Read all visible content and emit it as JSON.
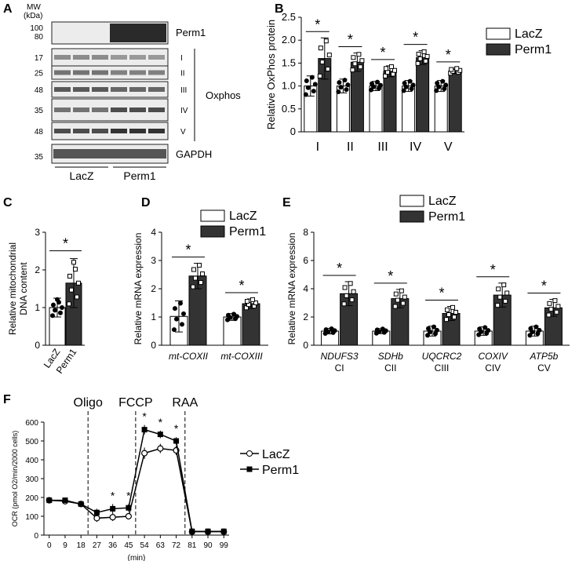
{
  "figure": {
    "panel_labels": [
      "A",
      "B",
      "C",
      "D",
      "E",
      "F"
    ]
  },
  "western_blot": {
    "mw_label": "MW",
    "mw_unit": "(kDa)",
    "perm1_band": {
      "name": "Perm1",
      "mw": [
        "100",
        "80"
      ]
    },
    "oxphos_label": "Oxphos",
    "oxphos_bands": [
      {
        "complex": "I",
        "mw": "17"
      },
      {
        "complex": "II",
        "mw": "25"
      },
      {
        "complex": "III",
        "mw": "48"
      },
      {
        "complex": "IV",
        "mw": "35"
      },
      {
        "complex": "V",
        "mw": "48"
      }
    ],
    "gapdh_band": {
      "name": "GAPDH",
      "mw": "35"
    },
    "groups": [
      "LacZ",
      "Perm1"
    ]
  },
  "chart_data": [
    {
      "panel": "B",
      "type": "bar",
      "ylabel": "Relative OxPhos protein",
      "ylim": [
        0,
        2.5
      ],
      "yticks": [
        "0",
        "0.5",
        "1.0",
        "1.5",
        "2.0",
        "2.5"
      ],
      "categories": [
        "I",
        "II",
        "III",
        "IV",
        "V"
      ],
      "series": [
        {
          "name": "LacZ",
          "values": [
            1.0,
            1.0,
            1.0,
            1.0,
            1.0
          ],
          "err": [
            0.22,
            0.15,
            0.1,
            0.12,
            0.12
          ]
        },
        {
          "name": "Perm1",
          "values": [
            1.6,
            1.52,
            1.32,
            1.62,
            1.33
          ],
          "err": [
            0.45,
            0.2,
            0.12,
            0.15,
            0.06
          ]
        }
      ],
      "significance": [
        "*",
        "*",
        "*",
        "*",
        "*"
      ],
      "legend": "right"
    },
    {
      "panel": "C",
      "type": "bar",
      "ylabel": "Relative mitochondrial DNA content",
      "ylim": [
        0,
        3
      ],
      "yticks": [
        "0",
        "1",
        "2",
        "3"
      ],
      "categories": [
        "LacZ",
        "Perm1"
      ],
      "values": [
        1.0,
        1.65
      ],
      "err": [
        0.25,
        0.65
      ],
      "significance": [
        "*"
      ]
    },
    {
      "panel": "D",
      "type": "bar",
      "ylabel": "Relative mRNA expression",
      "ylim": [
        0,
        4
      ],
      "yticks": [
        "0",
        "1",
        "2",
        "3",
        "4"
      ],
      "categories": [
        "mt-COXII",
        "mt-COXIII"
      ],
      "series": [
        {
          "name": "LacZ",
          "values": [
            1.02,
            1.0
          ],
          "err": [
            0.55,
            0.12
          ]
        },
        {
          "name": "Perm1",
          "values": [
            2.45,
            1.47
          ],
          "err": [
            0.45,
            0.17
          ]
        }
      ],
      "significance": [
        "*",
        "*"
      ],
      "legend": "top"
    },
    {
      "panel": "E",
      "type": "bar",
      "ylabel": "Relative mRNA expression",
      "ylim": [
        0,
        8
      ],
      "yticks": [
        "0",
        "2",
        "4",
        "6",
        "8"
      ],
      "categories": [
        "NDUFS3",
        "SDHb",
        "UQCRC2",
        "COXIV",
        "ATP5b"
      ],
      "sublabels": [
        "CI",
        "CII",
        "CIII",
        "CIV",
        "CV"
      ],
      "series": [
        {
          "name": "LacZ",
          "values": [
            1.0,
            1.0,
            1.0,
            1.0,
            1.0
          ],
          "err": [
            0.2,
            0.18,
            0.35,
            0.3,
            0.35
          ]
        },
        {
          "name": "Perm1",
          "values": [
            3.65,
            3.3,
            2.25,
            3.55,
            2.65
          ],
          "err": [
            0.85,
            0.65,
            0.5,
            0.85,
            0.6
          ]
        }
      ],
      "significance": [
        "*",
        "*",
        "*",
        "*",
        "*"
      ],
      "legend": "top"
    },
    {
      "panel": "F",
      "type": "line",
      "ylabel": "OCR (pmol O2/min/2000 cells)",
      "xlabel": "(min)",
      "ylim": [
        0,
        600
      ],
      "yticks": [
        "0",
        "100",
        "200",
        "300",
        "400",
        "500",
        "600"
      ],
      "xticks": [
        "0",
        "9",
        "18",
        "27",
        "36",
        "45",
        "54",
        "63",
        "72",
        "81",
        "90",
        "99"
      ],
      "x": [
        0,
        9,
        18,
        27,
        36,
        45,
        54,
        63,
        72,
        81,
        90,
        99
      ],
      "series": [
        {
          "name": "LacZ",
          "marker": "open-circle",
          "values": [
            185,
            180,
            165,
            90,
            95,
            100,
            435,
            460,
            450,
            18,
            18,
            18
          ],
          "err": [
            15,
            12,
            12,
            20,
            20,
            15,
            30,
            25,
            25,
            3,
            3,
            3
          ]
        },
        {
          "name": "Perm1",
          "marker": "filled-square",
          "values": [
            185,
            185,
            165,
            120,
            140,
            145,
            560,
            535,
            500,
            20,
            20,
            20
          ],
          "err": [
            15,
            12,
            12,
            20,
            25,
            20,
            25,
            20,
            20,
            3,
            3,
            3
          ]
        }
      ],
      "injections": [
        {
          "label": "Oligo",
          "after_min": 22
        },
        {
          "label": "FCCP",
          "after_min": 49
        },
        {
          "label": "RAA",
          "after_min": 77
        }
      ],
      "asterisk_at": [
        36,
        45,
        54,
        63,
        72
      ],
      "legend": "right"
    }
  ]
}
